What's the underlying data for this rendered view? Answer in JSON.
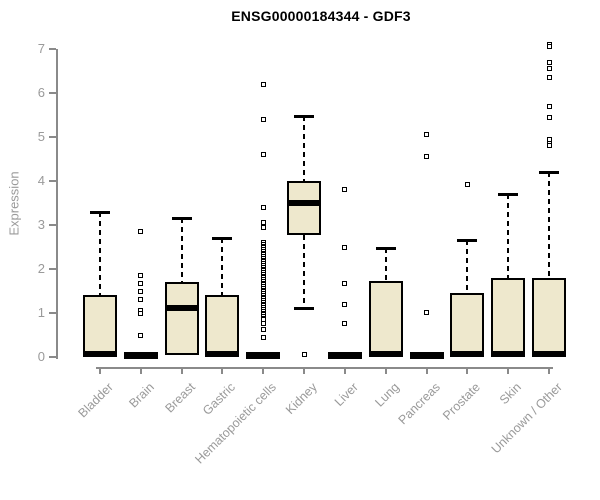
{
  "title": "ENSG00000184344 - GDF3",
  "y_axis": {
    "label": "Expression",
    "ticks": [
      0,
      1,
      2,
      3,
      4,
      5,
      6,
      7
    ]
  },
  "colors": {
    "box_fill": "#EEE8CD",
    "box_border": "#000000",
    "axis_line": "#8a8a8a",
    "tick_label": "#9a9a9a",
    "title_color": "#000000",
    "background": "#ffffff"
  },
  "chart_data": {
    "type": "boxplot",
    "title": "ENSG00000184344 - GDF3",
    "xlabel": "",
    "ylabel": "Expression",
    "ylim": [
      0,
      7
    ],
    "grid": false,
    "categories": [
      "Bladder",
      "Brain",
      "Breast",
      "Gastric",
      "Hematopoietic cells",
      "Kidney",
      "Liver",
      "Lung",
      "Pancreas",
      "Prostate",
      "Skin",
      "Unknown / Other"
    ],
    "series": [
      {
        "name": "Bladder",
        "low": 0,
        "q1": 0,
        "median": 0.07,
        "q3": 1.42,
        "high": 3.3,
        "outliers": []
      },
      {
        "name": "Brain",
        "low": 0,
        "q1": 0,
        "median": 0.05,
        "q3": 0,
        "high": 0,
        "outliers": [
          2.85,
          1.85,
          1.68,
          1.5,
          1.3,
          1.05,
          1.0,
          0.5
        ]
      },
      {
        "name": "Breast",
        "low": 0.05,
        "q1": 0.05,
        "median": 1.12,
        "q3": 1.7,
        "high": 3.15,
        "outliers": []
      },
      {
        "name": "Gastric",
        "low": 0,
        "q1": 0,
        "median": 0.07,
        "q3": 1.4,
        "high": 2.7,
        "outliers": []
      },
      {
        "name": "Hematopoietic cells",
        "low": 0,
        "q1": 0,
        "median": 0.05,
        "q3": 0,
        "high": 0,
        "outliers": [
          6.2,
          5.4,
          4.6,
          3.4,
          3.05,
          2.95,
          2.6,
          2.56,
          2.52,
          2.48,
          2.44,
          2.4,
          2.36,
          2.32,
          2.28,
          2.24,
          2.2,
          2.16,
          2.12,
          2.08,
          2.04,
          2.0,
          1.96,
          1.92,
          1.88,
          1.84,
          1.8,
          1.76,
          1.72,
          1.68,
          1.64,
          1.6,
          1.56,
          1.52,
          1.48,
          1.44,
          1.4,
          1.36,
          1.32,
          1.28,
          1.24,
          1.2,
          1.16,
          1.12,
          1.08,
          1.04,
          1.0,
          0.96,
          0.92,
          0.88,
          0.85,
          0.77,
          0.62,
          0.45
        ]
      },
      {
        "name": "Kidney",
        "low": 1.12,
        "q1": 2.78,
        "median": 3.5,
        "q3": 4.0,
        "high": 5.48,
        "outliers": [
          0.05
        ]
      },
      {
        "name": "Liver",
        "low": 0,
        "q1": 0,
        "median": 0.05,
        "q3": 0,
        "high": 0,
        "outliers": [
          3.8,
          2.48,
          1.68,
          1.2,
          0.77
        ]
      },
      {
        "name": "Lung",
        "low": 0,
        "q1": 0,
        "median": 0.07,
        "q3": 1.73,
        "high": 2.48,
        "outliers": []
      },
      {
        "name": "Pancreas",
        "low": 0,
        "q1": 0,
        "median": 0.05,
        "q3": 0,
        "high": 0,
        "outliers": [
          5.05,
          4.55,
          1.02
        ]
      },
      {
        "name": "Prostate",
        "low": 0,
        "q1": 0,
        "median": 0.07,
        "q3": 1.45,
        "high": 2.65,
        "outliers": [
          3.92
        ]
      },
      {
        "name": "Skin",
        "low": 0,
        "q1": 0,
        "median": 0.07,
        "q3": 1.8,
        "high": 3.7,
        "outliers": []
      },
      {
        "name": "Unknown / Other",
        "low": 0,
        "q1": 0,
        "median": 0.07,
        "q3": 1.8,
        "high": 4.2,
        "outliers": [
          7.1,
          7.05,
          6.7,
          6.55,
          6.35,
          5.7,
          5.45,
          4.95,
          4.85,
          4.8
        ]
      }
    ]
  }
}
